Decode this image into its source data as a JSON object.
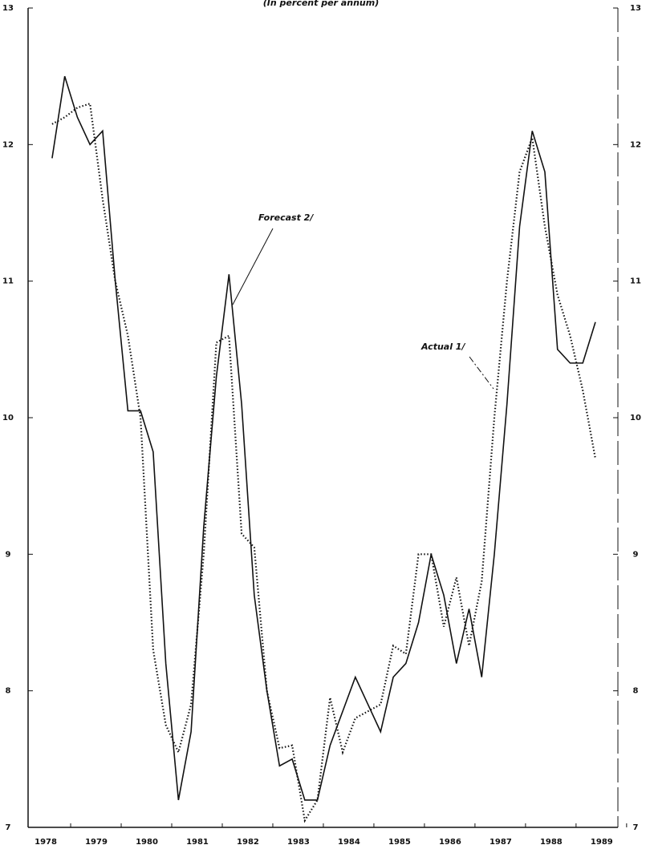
{
  "chart_data": {
    "type": "line",
    "subtitle": "(In percent per annum)",
    "x": [
      1978.125,
      1978.375,
      1978.625,
      1978.875,
      1979.125,
      1979.375,
      1979.625,
      1979.875,
      1980.125,
      1980.375,
      1980.625,
      1980.875,
      1981.125,
      1981.375,
      1981.625,
      1981.875,
      1982.125,
      1982.375,
      1982.625,
      1982.875,
      1983.125,
      1983.375,
      1983.625,
      1983.875,
      1984.125,
      1984.375,
      1984.625,
      1984.875,
      1985.125,
      1985.375,
      1985.625,
      1985.875,
      1986.125,
      1986.375,
      1986.625,
      1986.875,
      1987.125,
      1987.375,
      1987.625,
      1987.875,
      1988.125,
      1988.375,
      1988.625,
      1988.875
    ],
    "series": [
      {
        "name": "Forecast 2/",
        "color": "#111111",
        "style": "solid",
        "values": [
          11.9,
          12.5,
          12.2,
          12.0,
          12.1,
          11.0,
          10.05,
          10.05,
          9.75,
          8.2,
          7.2,
          7.7,
          9.2,
          10.3,
          11.05,
          10.1,
          8.7,
          8.0,
          7.45,
          7.5,
          7.2,
          7.2,
          7.6,
          7.85,
          8.1,
          7.9,
          7.7,
          8.1,
          8.2,
          8.5,
          9.0,
          8.7,
          8.2,
          8.6,
          8.1,
          9.0,
          10.1,
          11.4,
          12.1,
          11.8,
          10.5,
          10.4,
          10.4,
          10.7
        ]
      },
      {
        "name": "Actual 1/",
        "color": "#111111",
        "style": "dotted",
        "values": [
          12.15,
          12.2,
          12.27,
          12.3,
          11.6,
          11.0,
          10.6,
          10.0,
          8.3,
          7.75,
          7.55,
          7.9,
          9.0,
          10.55,
          10.6,
          9.15,
          9.05,
          8.0,
          7.58,
          7.6,
          7.05,
          7.2,
          7.95,
          7.55,
          7.8,
          7.85,
          7.9,
          8.33,
          8.27,
          9.0,
          9.0,
          8.47,
          8.83,
          8.33,
          8.8,
          10.0,
          11.0,
          11.8,
          12.05,
          11.4,
          10.9,
          10.6,
          10.2,
          9.7
        ]
      }
    ],
    "xlim": [
      1977.65,
      1989.32
    ],
    "xticks": [
      1978,
      1979,
      1980,
      1981,
      1982,
      1983,
      1984,
      1985,
      1986,
      1987,
      1988,
      1989
    ],
    "ylim": [
      7,
      13
    ],
    "yticks": [
      7,
      8,
      9,
      10,
      11,
      12,
      13
    ],
    "y2lim": [
      7,
      13
    ],
    "y2ticks": [
      7,
      8,
      9,
      10,
      11,
      12,
      13
    ]
  }
}
